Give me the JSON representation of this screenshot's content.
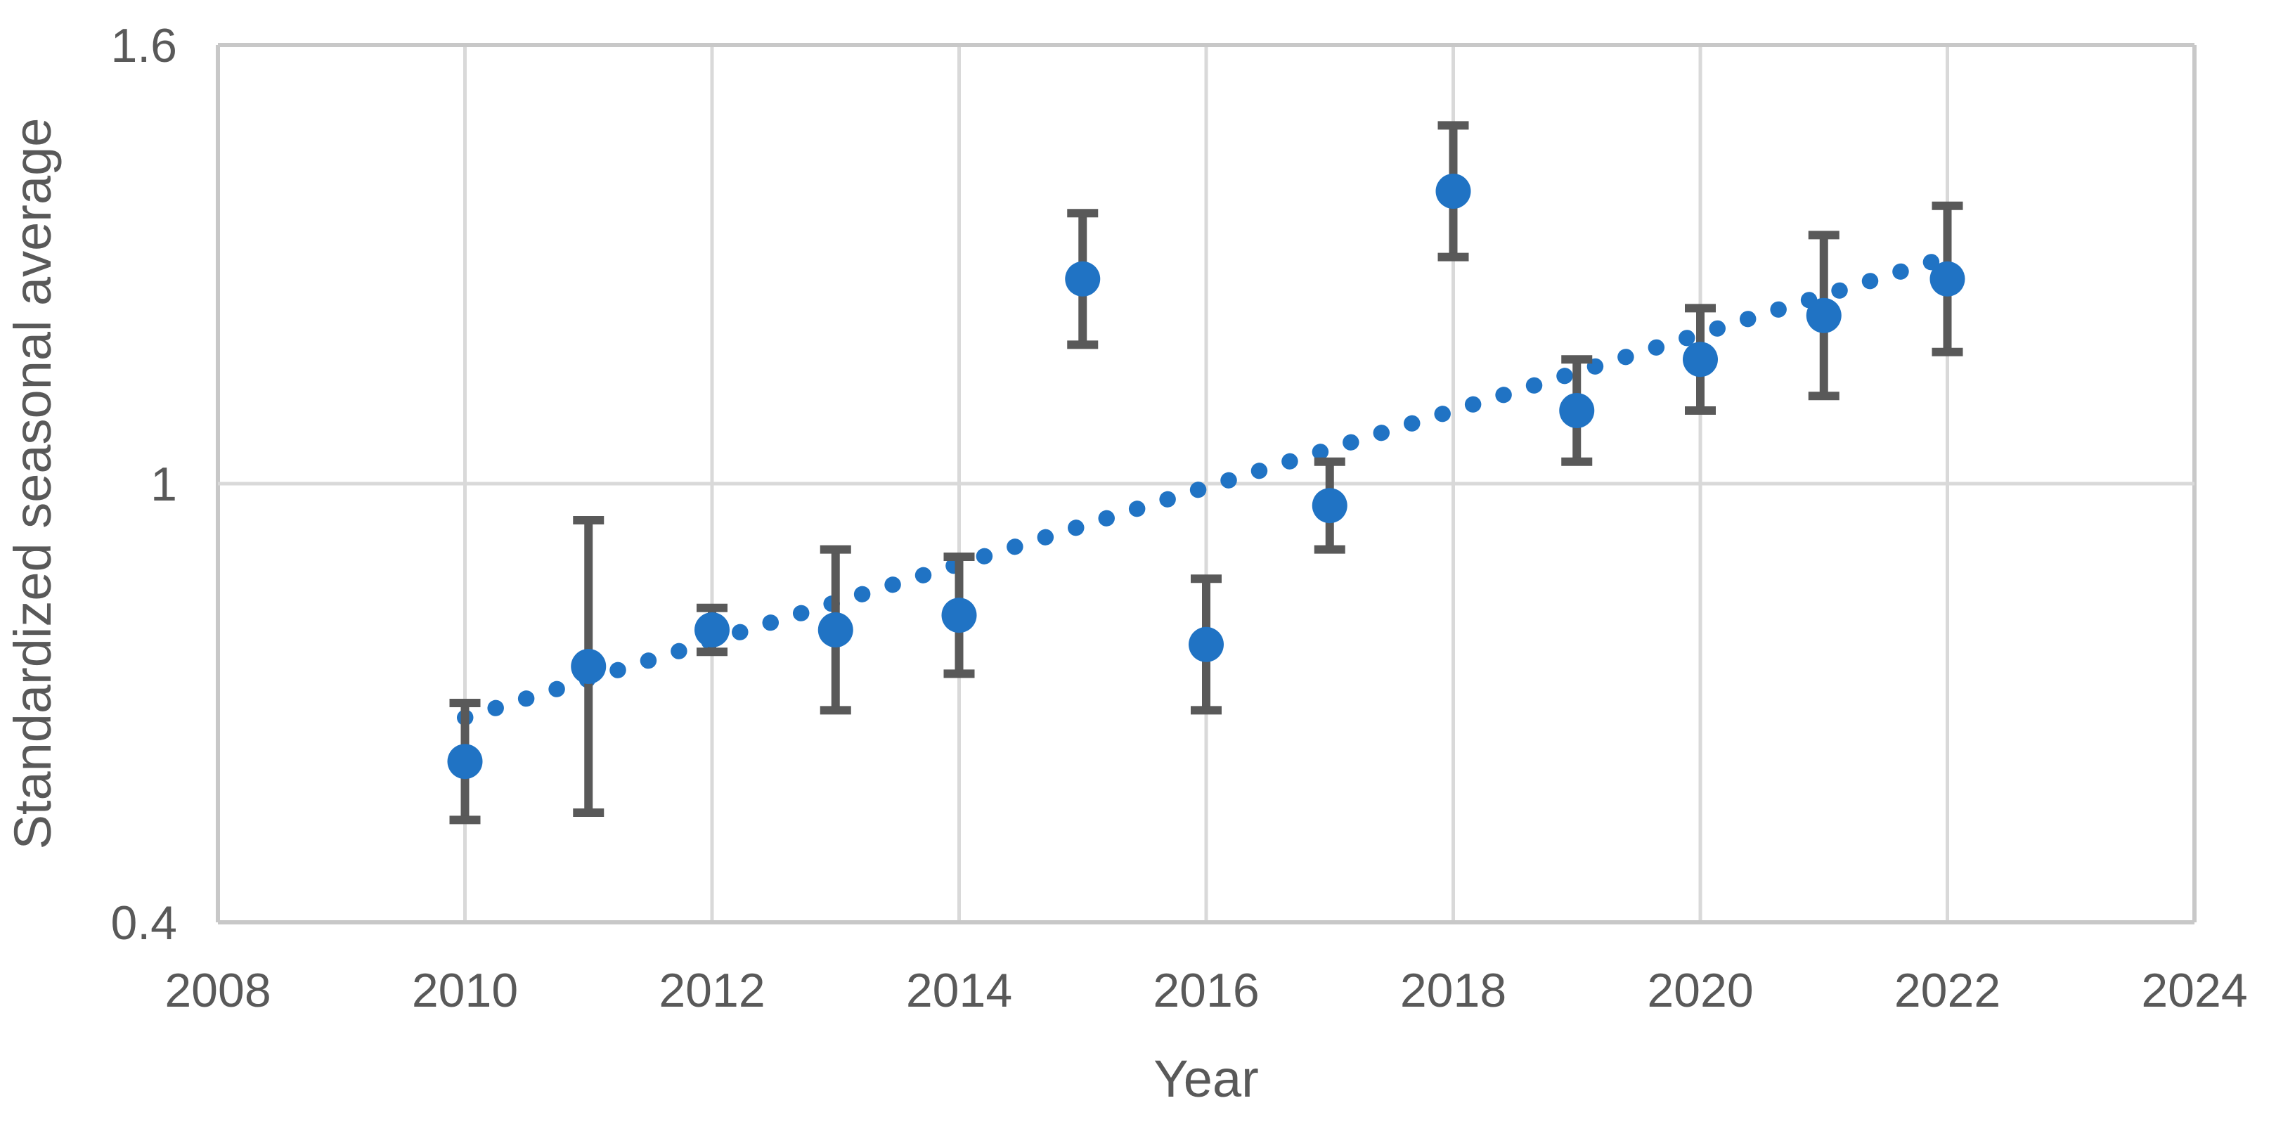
{
  "chart_data": {
    "type": "scatter",
    "title": "",
    "xlabel": "Year",
    "ylabel": "Standardized seasonal average",
    "xlim": [
      2008,
      2024
    ],
    "ylim": [
      0.4,
      1.6
    ],
    "x_ticks": [
      2008,
      2010,
      2012,
      2014,
      2016,
      2018,
      2020,
      2022,
      2024
    ],
    "x_tick_labels": [
      "2008",
      "2010",
      "2012",
      "2014",
      "2016",
      "2018",
      "2020",
      "2022",
      "2024"
    ],
    "y_ticks": [
      0.4,
      1.0,
      1.6
    ],
    "y_tick_labels": [
      "0.4",
      "1",
      "1.6"
    ],
    "grid": true,
    "legend": "none",
    "series": [
      {
        "name": "Standardized seasonal average",
        "marker": "circle",
        "x": [
          2010,
          2011,
          2012,
          2013,
          2014,
          2015,
          2016,
          2017,
          2018,
          2019,
          2020,
          2021,
          2022
        ],
        "y": [
          0.62,
          0.75,
          0.8,
          0.8,
          0.82,
          1.28,
          0.78,
          0.97,
          1.4,
          1.1,
          1.17,
          1.23,
          1.28
        ],
        "error_plus": [
          0.08,
          0.2,
          0.03,
          0.11,
          0.08,
          0.09,
          0.09,
          0.06,
          0.09,
          0.07,
          0.07,
          0.11,
          0.1
        ],
        "error_minus": [
          0.08,
          0.2,
          0.03,
          0.11,
          0.08,
          0.09,
          0.09,
          0.06,
          0.09,
          0.07,
          0.07,
          0.11,
          0.1
        ]
      }
    ],
    "trendline": {
      "style": "dotted",
      "x_start": 2010,
      "y_start": 0.68,
      "x_end": 2022,
      "y_end": 1.31
    },
    "colors": {
      "marker": "#2073C4",
      "trendline": "#2073C4",
      "error_bar": "#595959",
      "gridline": "#D9D9D9",
      "axis_line": "#C8C8C8",
      "tick_label": "#595959",
      "axis_title": "#595959",
      "background": "#FFFFFF"
    }
  }
}
